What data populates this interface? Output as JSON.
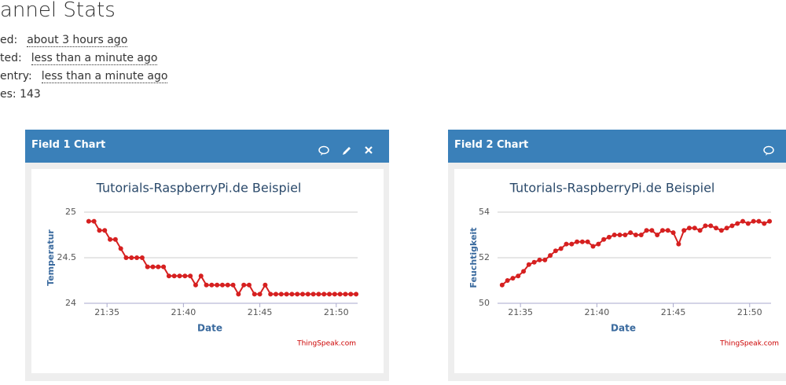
{
  "header": {
    "title": "annel Stats",
    "rows": [
      {
        "label": "ed:",
        "value": "about 3 hours ago"
      },
      {
        "label": "ted:",
        "value": "less than a minute ago"
      },
      {
        "label": "entry:",
        "value": "less than a minute ago"
      }
    ],
    "entries": "es: 143"
  },
  "chart_data": [
    {
      "type": "line",
      "panel_title": "Field 1 Chart",
      "title": "Tutorials-RaspberryPi.de Beispiel",
      "xlabel": "Date",
      "ylabel": "Temperatur",
      "credit": "ThingSpeak.com",
      "x": [
        1293.8,
        1294.15,
        1294.5,
        1294.85,
        1295.2,
        1295.55,
        1295.9,
        1296.25,
        1296.6,
        1296.95,
        1297.3,
        1297.65,
        1298,
        1298.35,
        1298.7,
        1299.05,
        1299.4,
        1299.75,
        1300.1,
        1300.45,
        1300.8,
        1301.15,
        1301.5,
        1301.85,
        1302.2,
        1302.55,
        1302.9,
        1303.25,
        1303.6,
        1303.95,
        1304.3,
        1304.65,
        1305,
        1305.35,
        1305.7,
        1306.05,
        1306.4,
        1306.75,
        1307.1,
        1307.45,
        1307.8,
        1308.15,
        1308.5,
        1308.85,
        1309.2,
        1309.55,
        1309.9,
        1310.25,
        1310.6,
        1310.95,
        1311.3
      ],
      "series": [
        {
          "color": "#d62020",
          "values": [
            24.9,
            24.9,
            24.8,
            24.8,
            24.7,
            24.7,
            24.6,
            24.5,
            24.5,
            24.5,
            24.5,
            24.4,
            24.4,
            24.4,
            24.4,
            24.3,
            24.3,
            24.3,
            24.3,
            24.3,
            24.2,
            24.3,
            24.2,
            24.2,
            24.2,
            24.2,
            24.2,
            24.2,
            24.1,
            24.2,
            24.2,
            24.1,
            24.1,
            24.2,
            24.1,
            24.1,
            24.1,
            24.1,
            24.1,
            24.1,
            24.1,
            24.1,
            24.1,
            24.1,
            24.1,
            24.1,
            24.1,
            24.1,
            24.1,
            24.1,
            24.1
          ]
        }
      ],
      "xlim": [
        1293.5,
        1311.4
      ],
      "xticks": [
        {
          "value": 1295,
          "label": "21:35"
        },
        {
          "value": 1300,
          "label": "21:40"
        },
        {
          "value": 1305,
          "label": "21:45"
        },
        {
          "value": 1310,
          "label": "21:50"
        }
      ],
      "ylim": [
        24,
        25
      ],
      "yticks": [
        24,
        24.5,
        25
      ],
      "grid": true
    },
    {
      "type": "line",
      "panel_title": "Field 2 Chart",
      "title": "Tutorials-RaspberryPi.de Beispiel",
      "xlabel": "Date",
      "ylabel": "Feuchtigkeit",
      "credit": "ThingSpeak.com",
      "x": [
        1293.8,
        1294.15,
        1294.5,
        1294.85,
        1295.2,
        1295.55,
        1295.9,
        1296.25,
        1296.6,
        1296.95,
        1297.3,
        1297.65,
        1298,
        1298.35,
        1298.7,
        1299.05,
        1299.4,
        1299.75,
        1300.1,
        1300.45,
        1300.8,
        1301.15,
        1301.5,
        1301.85,
        1302.2,
        1302.55,
        1302.9,
        1303.25,
        1303.6,
        1303.95,
        1304.3,
        1304.65,
        1305,
        1305.35,
        1305.7,
        1306.05,
        1306.4,
        1306.75,
        1307.1,
        1307.45,
        1307.8,
        1308.15,
        1308.5,
        1308.85,
        1309.2,
        1309.55,
        1309.9,
        1310.25,
        1310.6,
        1310.95,
        1311.3
      ],
      "series": [
        {
          "color": "#d62020",
          "values": [
            50.8,
            51.0,
            51.1,
            51.2,
            51.4,
            51.7,
            51.8,
            51.9,
            51.9,
            52.1,
            52.3,
            52.4,
            52.6,
            52.6,
            52.7,
            52.7,
            52.7,
            52.5,
            52.6,
            52.8,
            52.9,
            53.0,
            53.0,
            53.0,
            53.1,
            53.0,
            53.0,
            53.2,
            53.2,
            53.0,
            53.2,
            53.2,
            53.1,
            52.6,
            53.2,
            53.3,
            53.3,
            53.2,
            53.4,
            53.4,
            53.3,
            53.2,
            53.3,
            53.4,
            53.5,
            53.6,
            53.5,
            53.6,
            53.6,
            53.5,
            53.6
          ]
        }
      ],
      "xlim": [
        1293.5,
        1311.4
      ],
      "xticks": [
        {
          "value": 1295,
          "label": "21:35"
        },
        {
          "value": 1300,
          "label": "21:40"
        },
        {
          "value": 1305,
          "label": "21:45"
        },
        {
          "value": 1310,
          "label": "21:50"
        }
      ],
      "ylim": [
        50,
        54
      ],
      "yticks": [
        50,
        52,
        54
      ],
      "grid": true
    }
  ]
}
